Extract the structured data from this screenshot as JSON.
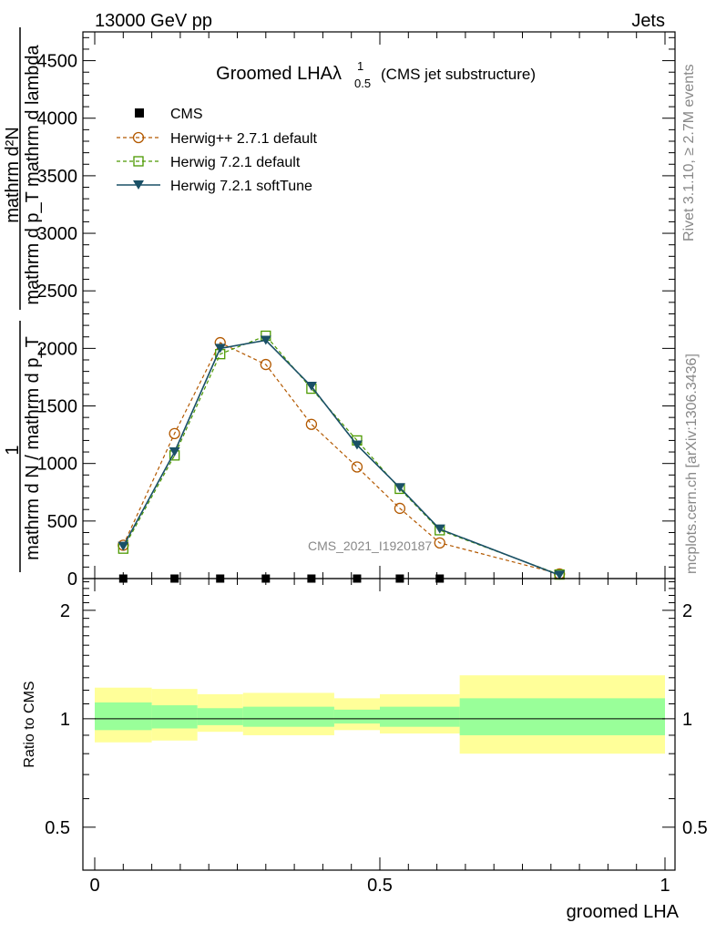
{
  "header": {
    "energy_label": "13000 GeV pp",
    "category_label": "Jets",
    "rivet_label": "Rivet 3.1.10, ≥ 2.7M events",
    "mcplots_label": "mcplots.cern.ch [arXiv:1306.3436]",
    "analysis_id": "CMS_2021_I1920187"
  },
  "chart_data": [
    {
      "type": "line",
      "title": "Groomed LHAλ",
      "title_sup": "1",
      "title_sub": "0.5",
      "title_suffix": "(CMS jet substructure)",
      "ylabel_numerator": "mathrm d²N",
      "ylabel_denominator": "mathrm d p_T mathrm d lambda",
      "ylabel_prefix": "1",
      "ylabel_prefix_denominator": "mathrm d N / mathrm d p_T",
      "xlim": [
        0,
        1
      ],
      "ylim": [
        0,
        4750
      ],
      "yticks": [
        0,
        500,
        1000,
        1500,
        2000,
        2500,
        3000,
        3500,
        4000,
        4500
      ],
      "ytick_labels": [
        "0",
        "500",
        "1000",
        "1500",
        "2000",
        "2500",
        "3000",
        "3500",
        "4000",
        "4500"
      ],
      "legend_position": "top-left",
      "series": [
        {
          "name": "CMS",
          "style": "data",
          "color": "#000000",
          "x": [
            0.05,
            0.14,
            0.22,
            0.3,
            0.38,
            0.46,
            0.535,
            0.605
          ],
          "values": [
            0,
            0,
            0,
            0,
            0,
            0,
            0,
            0
          ]
        },
        {
          "name": "Herwig++ 2.7.1 default",
          "style": "dashed-circle",
          "color": "#b35900",
          "x": [
            0.05,
            0.14,
            0.22,
            0.3,
            0.38,
            0.46,
            0.535,
            0.605,
            0.815
          ],
          "values": [
            290,
            1260,
            2050,
            1860,
            1340,
            970,
            610,
            310,
            40
          ]
        },
        {
          "name": "Herwig 7.2.1 default",
          "style": "dashed-square",
          "color": "#4c9900",
          "x": [
            0.05,
            0.14,
            0.22,
            0.3,
            0.38,
            0.46,
            0.535,
            0.605,
            0.815
          ],
          "values": [
            260,
            1070,
            1950,
            2110,
            1650,
            1200,
            780,
            420,
            35
          ]
        },
        {
          "name": "Herwig 7.2.1 softTune",
          "style": "solid-triangle",
          "color": "#1a5066",
          "x": [
            0.05,
            0.14,
            0.22,
            0.3,
            0.38,
            0.46,
            0.535,
            0.605,
            0.815
          ],
          "values": [
            280,
            1100,
            2000,
            2070,
            1670,
            1160,
            790,
            430,
            30
          ]
        }
      ]
    },
    {
      "type": "area",
      "ylabel": "Ratio to CMS",
      "xlabel": "groomed LHA",
      "xlim": [
        0,
        1
      ],
      "xticks": [
        0,
        0.5,
        1
      ],
      "xtick_labels": [
        "0",
        "0.5",
        "1"
      ],
      "ylim": [
        0.38,
        2.45
      ],
      "ytick_labels": [
        {
          "value": 0.5,
          "label": "0.5"
        },
        {
          "value": 1,
          "label": "1"
        },
        {
          "value": 2,
          "label": "2"
        }
      ],
      "bin_edges": [
        0,
        0.1,
        0.18,
        0.26,
        0.42,
        0.5,
        0.64,
        1.0
      ],
      "stat_lo": [
        0.93,
        0.94,
        0.96,
        0.95,
        0.97,
        0.95,
        0.9
      ],
      "stat_hi": [
        1.11,
        1.09,
        1.07,
        1.08,
        1.06,
        1.08,
        1.14
      ],
      "total_lo": [
        0.86,
        0.87,
        0.92,
        0.9,
        0.93,
        0.91,
        0.8
      ],
      "total_hi": [
        1.22,
        1.21,
        1.17,
        1.18,
        1.14,
        1.17,
        1.32
      ]
    }
  ]
}
